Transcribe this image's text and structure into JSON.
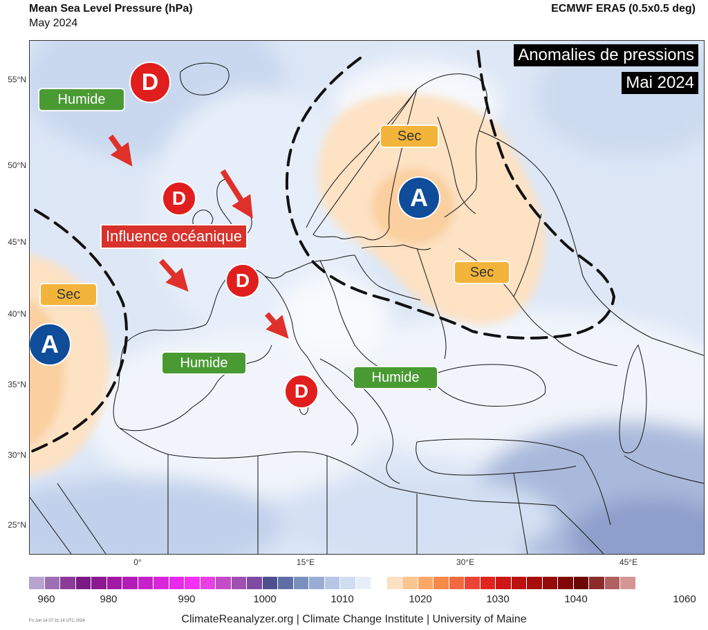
{
  "header": {
    "title": "Mean Sea Level Pressure (hPa)",
    "subtitle": "May 2024",
    "dataset": "ECMWF ERA5 (0.5x0.5 deg)"
  },
  "map": {
    "lat_labels": [
      "55°N",
      "50°N",
      "45°N",
      "40°N",
      "35°N",
      "30°N",
      "25°N"
    ],
    "lon_labels": [
      "0°",
      "15°E",
      "30°E",
      "45°E"
    ],
    "overlay_title_line1": "Anomalies de pressions",
    "overlay_title_line2": "Mai 2024",
    "labels": {
      "humide_nw": "Humide",
      "humide_spain": "Humide",
      "humide_balkans": "Humide",
      "sec_scandinavia": "Sec",
      "sec_ukraine": "Sec",
      "sec_atlantic": "Sec",
      "influence": "Influence océanique"
    },
    "lows": [
      "D",
      "D",
      "D",
      "D"
    ],
    "highs": [
      "A",
      "A"
    ],
    "colors": {
      "low_marker": "#e01e1e",
      "high_marker": "#0f4c9a",
      "humid_label": "#4a9a34",
      "dry_label": "#f2b43a",
      "influence_label": "#d9312b"
    }
  },
  "colorbar": {
    "labels": [
      "960",
      "980",
      "990",
      "1000",
      "1010",
      "1020",
      "1030",
      "1040",
      "1060"
    ],
    "colors": [
      "#b7a3cf",
      "#9c6fb3",
      "#8a3c98",
      "#7a1b85",
      "#8c1a8f",
      "#a11aa3",
      "#b31db6",
      "#c622c9",
      "#d926db",
      "#e82ae9",
      "#f530f4",
      "#e840e4",
      "#c54cc7",
      "#a050b0",
      "#7e4aa2",
      "#4d4f8f",
      "#5f6fa6",
      "#7b8fbd",
      "#9aacd2",
      "#b6c7e6",
      "#cfdcf2",
      "#e6eef9",
      "#ffffff",
      "#fde0c1",
      "#fcc690",
      "#fba866",
      "#f7894b",
      "#f26940",
      "#ea4436",
      "#e2241f",
      "#cf1616",
      "#bb1111",
      "#a60d0d",
      "#930b0b",
      "#7f0707",
      "#6b0707",
      "#8b2b2b",
      "#b06060",
      "#d59595"
    ]
  },
  "footer": {
    "credit": "ClimateReanalyzer.org | Climate Change Institute | University of Maine",
    "stamp": "Fri Jun 14 07:31:14 UTC 2024"
  }
}
